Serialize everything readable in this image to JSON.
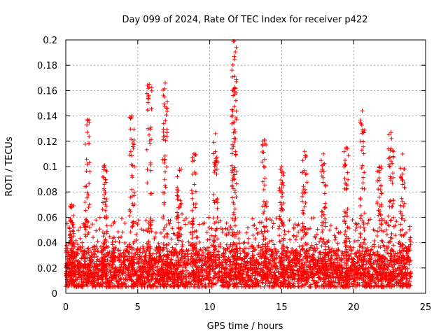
{
  "chart_data": {
    "type": "scatter",
    "title": "Day 099 of 2024, Rate Of TEC Index for receiver p422",
    "xlabel": "GPS time / hours",
    "ylabel": "ROTI / TECUs",
    "xlim": [
      0,
      25
    ],
    "ylim": [
      0,
      0.2
    ],
    "x_ticks": [
      0,
      5,
      10,
      15,
      20,
      25
    ],
    "x_tick_labels": [
      "0",
      "5",
      "10",
      "15",
      "20",
      "25"
    ],
    "y_ticks": [
      0,
      0.02,
      0.04,
      0.06,
      0.08,
      0.1,
      0.12,
      0.14,
      0.16,
      0.18,
      0.2
    ],
    "y_tick_labels": [
      "0",
      "0.02",
      "0.04",
      "0.06",
      "0.08",
      "0.1",
      "0.12",
      "0.14",
      "0.16",
      "0.18",
      "0.2"
    ],
    "grid": true,
    "marker": "+",
    "color": "#ff0000",
    "series": [
      {
        "name": "ROTI",
        "x_range": [
          0.0,
          24.0
        ],
        "baseline_range": [
          0.005,
          0.03
        ],
        "typical_max": 0.06,
        "activity_peaks": [
          {
            "x": 0.4,
            "y": 0.07
          },
          {
            "x": 1.5,
            "y": 0.137
          },
          {
            "x": 2.7,
            "y": 0.101
          },
          {
            "x": 4.6,
            "y": 0.14
          },
          {
            "x": 5.8,
            "y": 0.165
          },
          {
            "x": 6.9,
            "y": 0.166
          },
          {
            "x": 7.9,
            "y": 0.098
          },
          {
            "x": 8.9,
            "y": 0.11
          },
          {
            "x": 10.4,
            "y": 0.126
          },
          {
            "x": 11.7,
            "y": 0.199
          },
          {
            "x": 11.7,
            "y": 0.187
          },
          {
            "x": 13.8,
            "y": 0.121
          },
          {
            "x": 15.0,
            "y": 0.1
          },
          {
            "x": 16.6,
            "y": 0.112
          },
          {
            "x": 17.9,
            "y": 0.11
          },
          {
            "x": 19.5,
            "y": 0.115
          },
          {
            "x": 20.6,
            "y": 0.144
          },
          {
            "x": 21.8,
            "y": 0.1
          },
          {
            "x": 22.6,
            "y": 0.127
          },
          {
            "x": 23.4,
            "y": 0.11
          }
        ]
      }
    ]
  }
}
